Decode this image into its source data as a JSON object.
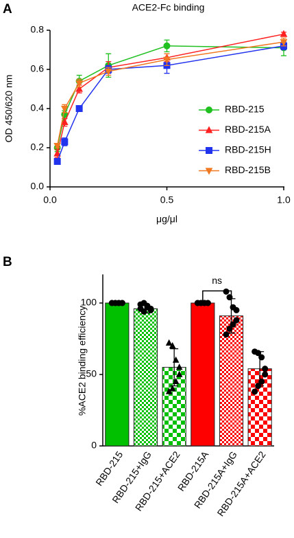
{
  "chart_data": [
    {
      "type": "line",
      "panel_label": "A",
      "title": "ACE2-Fc binding",
      "x_label": "μg/μl",
      "y_label": "OD 450/620 nm",
      "x": [
        0.03125,
        0.0625,
        0.125,
        0.25,
        0.5,
        1.0
      ],
      "xlim": [
        0,
        1
      ],
      "xticks": [
        {
          "value": 0,
          "label": "0.0"
        },
        {
          "value": 0.5,
          "label": "0.5"
        },
        {
          "value": 1,
          "label": "1.0"
        }
      ],
      "ylim": [
        0,
        0.8
      ],
      "yticks": [
        {
          "value": 0,
          "label": "0.0"
        },
        {
          "value": 0.2,
          "label": "0.2"
        },
        {
          "value": 0.4,
          "label": "0.4"
        },
        {
          "value": 0.6,
          "label": "0.6"
        },
        {
          "value": 0.8,
          "label": "0.8"
        }
      ],
      "legend": "right",
      "series": [
        {
          "name": "RBD-215",
          "color": "#1fc01f",
          "marker": "circle",
          "values": [
            0.2,
            0.37,
            0.54,
            0.62,
            0.72,
            0.71
          ],
          "errors": [
            0.02,
            0.02,
            0.03,
            0.06,
            0.03,
            0.04
          ]
        },
        {
          "name": "RBD-215A",
          "color": "#ff2020",
          "marker": "triangle-up",
          "values": [
            0.17,
            0.33,
            0.5,
            0.61,
            0.66,
            0.78
          ],
          "errors": [
            0.02,
            0.02,
            0.02,
            0.03,
            0.02,
            0.01
          ]
        },
        {
          "name": "RBD-215H",
          "color": "#2233ee",
          "marker": "square",
          "values": [
            0.13,
            0.23,
            0.4,
            0.6,
            0.62,
            0.72
          ],
          "errors": [
            0.01,
            0.02,
            0.01,
            0.02,
            0.04,
            0.02
          ]
        },
        {
          "name": "RBD-215B",
          "color": "#f07820",
          "marker": "triangle-down",
          "values": [
            0.21,
            0.4,
            0.53,
            0.59,
            0.65,
            0.74
          ],
          "errors": [
            0.01,
            0.02,
            0.02,
            0.02,
            0.03,
            0.02
          ]
        }
      ]
    },
    {
      "type": "bar",
      "panel_label": "B",
      "y_label": "%ACE2 binding efficiency",
      "categories": [
        "RBD-215",
        "RBD-215+IgG",
        "RBD-215+ACE2",
        "RBD-215A",
        "RBD-215A+IgG",
        "RBD-215A+ACE2"
      ],
      "values": [
        100,
        96,
        55,
        100,
        91,
        54
      ],
      "errors": [
        0,
        3,
        13,
        0,
        12,
        12
      ],
      "colors": [
        "#00c000",
        "#00c000",
        "#00c000",
        "#ff0000",
        "#ff0000",
        "#ff0000"
      ],
      "patterns": [
        "solid",
        "fine-check",
        "coarse-check",
        "solid",
        "fine-check",
        "coarse-check"
      ],
      "point_markers": [
        "circle",
        "circle",
        "triangle-up",
        "circle",
        "circle",
        "circle"
      ],
      "points": [
        [
          100,
          100,
          100,
          100,
          100,
          100,
          100,
          100
        ],
        [
          99,
          100,
          97,
          95,
          96,
          98,
          94,
          96
        ],
        [
          72,
          70,
          60,
          55,
          50,
          45,
          40,
          38
        ],
        [
          100,
          100,
          100,
          100,
          100,
          100,
          100,
          100
        ],
        [
          108,
          104,
          97,
          95,
          88,
          85,
          82,
          78
        ],
        [
          66,
          65,
          62,
          54,
          50,
          45,
          42,
          38
        ]
      ],
      "ylim": [
        0,
        120
      ],
      "yticks": [
        0,
        50,
        100
      ],
      "significance": {
        "text": "ns",
        "categories": [
          "RBD-215A",
          "RBD-215A+IgG"
        ]
      }
    }
  ]
}
